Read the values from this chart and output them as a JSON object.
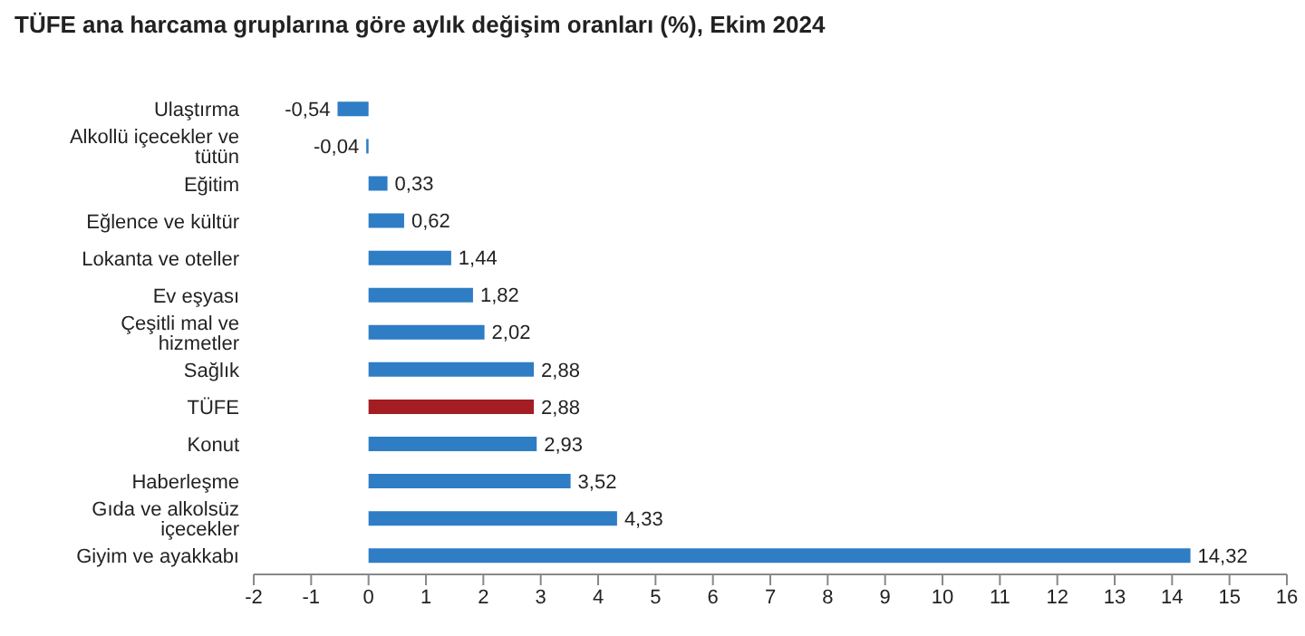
{
  "chart_data": {
    "type": "bar",
    "orientation": "horizontal",
    "title": "TÜFE ana harcama gruplarına göre aylık değişim oranları (%), Ekim 2024",
    "categories": [
      "Ulaştırma",
      "Alkollü içecekler ve tütün",
      "Eğitim",
      "Eğlence ve kültür",
      "Lokanta ve oteller",
      "Ev eşyası",
      "Çeşitli mal ve hizmetler",
      "Sağlık",
      "TÜFE",
      "Konut",
      "Haberleşme",
      "Gıda ve alkolsüz içecekler",
      "Giyim ve ayakkabı"
    ],
    "values": [
      -0.54,
      -0.04,
      0.33,
      0.62,
      1.44,
      1.82,
      2.02,
      2.88,
      2.88,
      2.93,
      3.52,
      4.33,
      14.32
    ],
    "value_labels": [
      "-0,54",
      "-0,04",
      "0,33",
      "0,62",
      "1,44",
      "1,82",
      "2,02",
      "2,88",
      "2,88",
      "2,93",
      "3,52",
      "4,33",
      "14,32"
    ],
    "colors": [
      "#2e7dc5",
      "#2e7dc5",
      "#2e7dc5",
      "#2e7dc5",
      "#2e7dc5",
      "#2e7dc5",
      "#2e7dc5",
      "#2e7dc5",
      "#a31d22",
      "#2e7dc5",
      "#2e7dc5",
      "#2e7dc5",
      "#2e7dc5"
    ],
    "xlim": [
      -2,
      16
    ],
    "xticks": [
      -2,
      -1,
      0,
      1,
      2,
      3,
      4,
      5,
      6,
      7,
      8,
      9,
      10,
      11,
      12,
      13,
      14,
      15,
      16
    ],
    "grid": false,
    "legend": false
  }
}
